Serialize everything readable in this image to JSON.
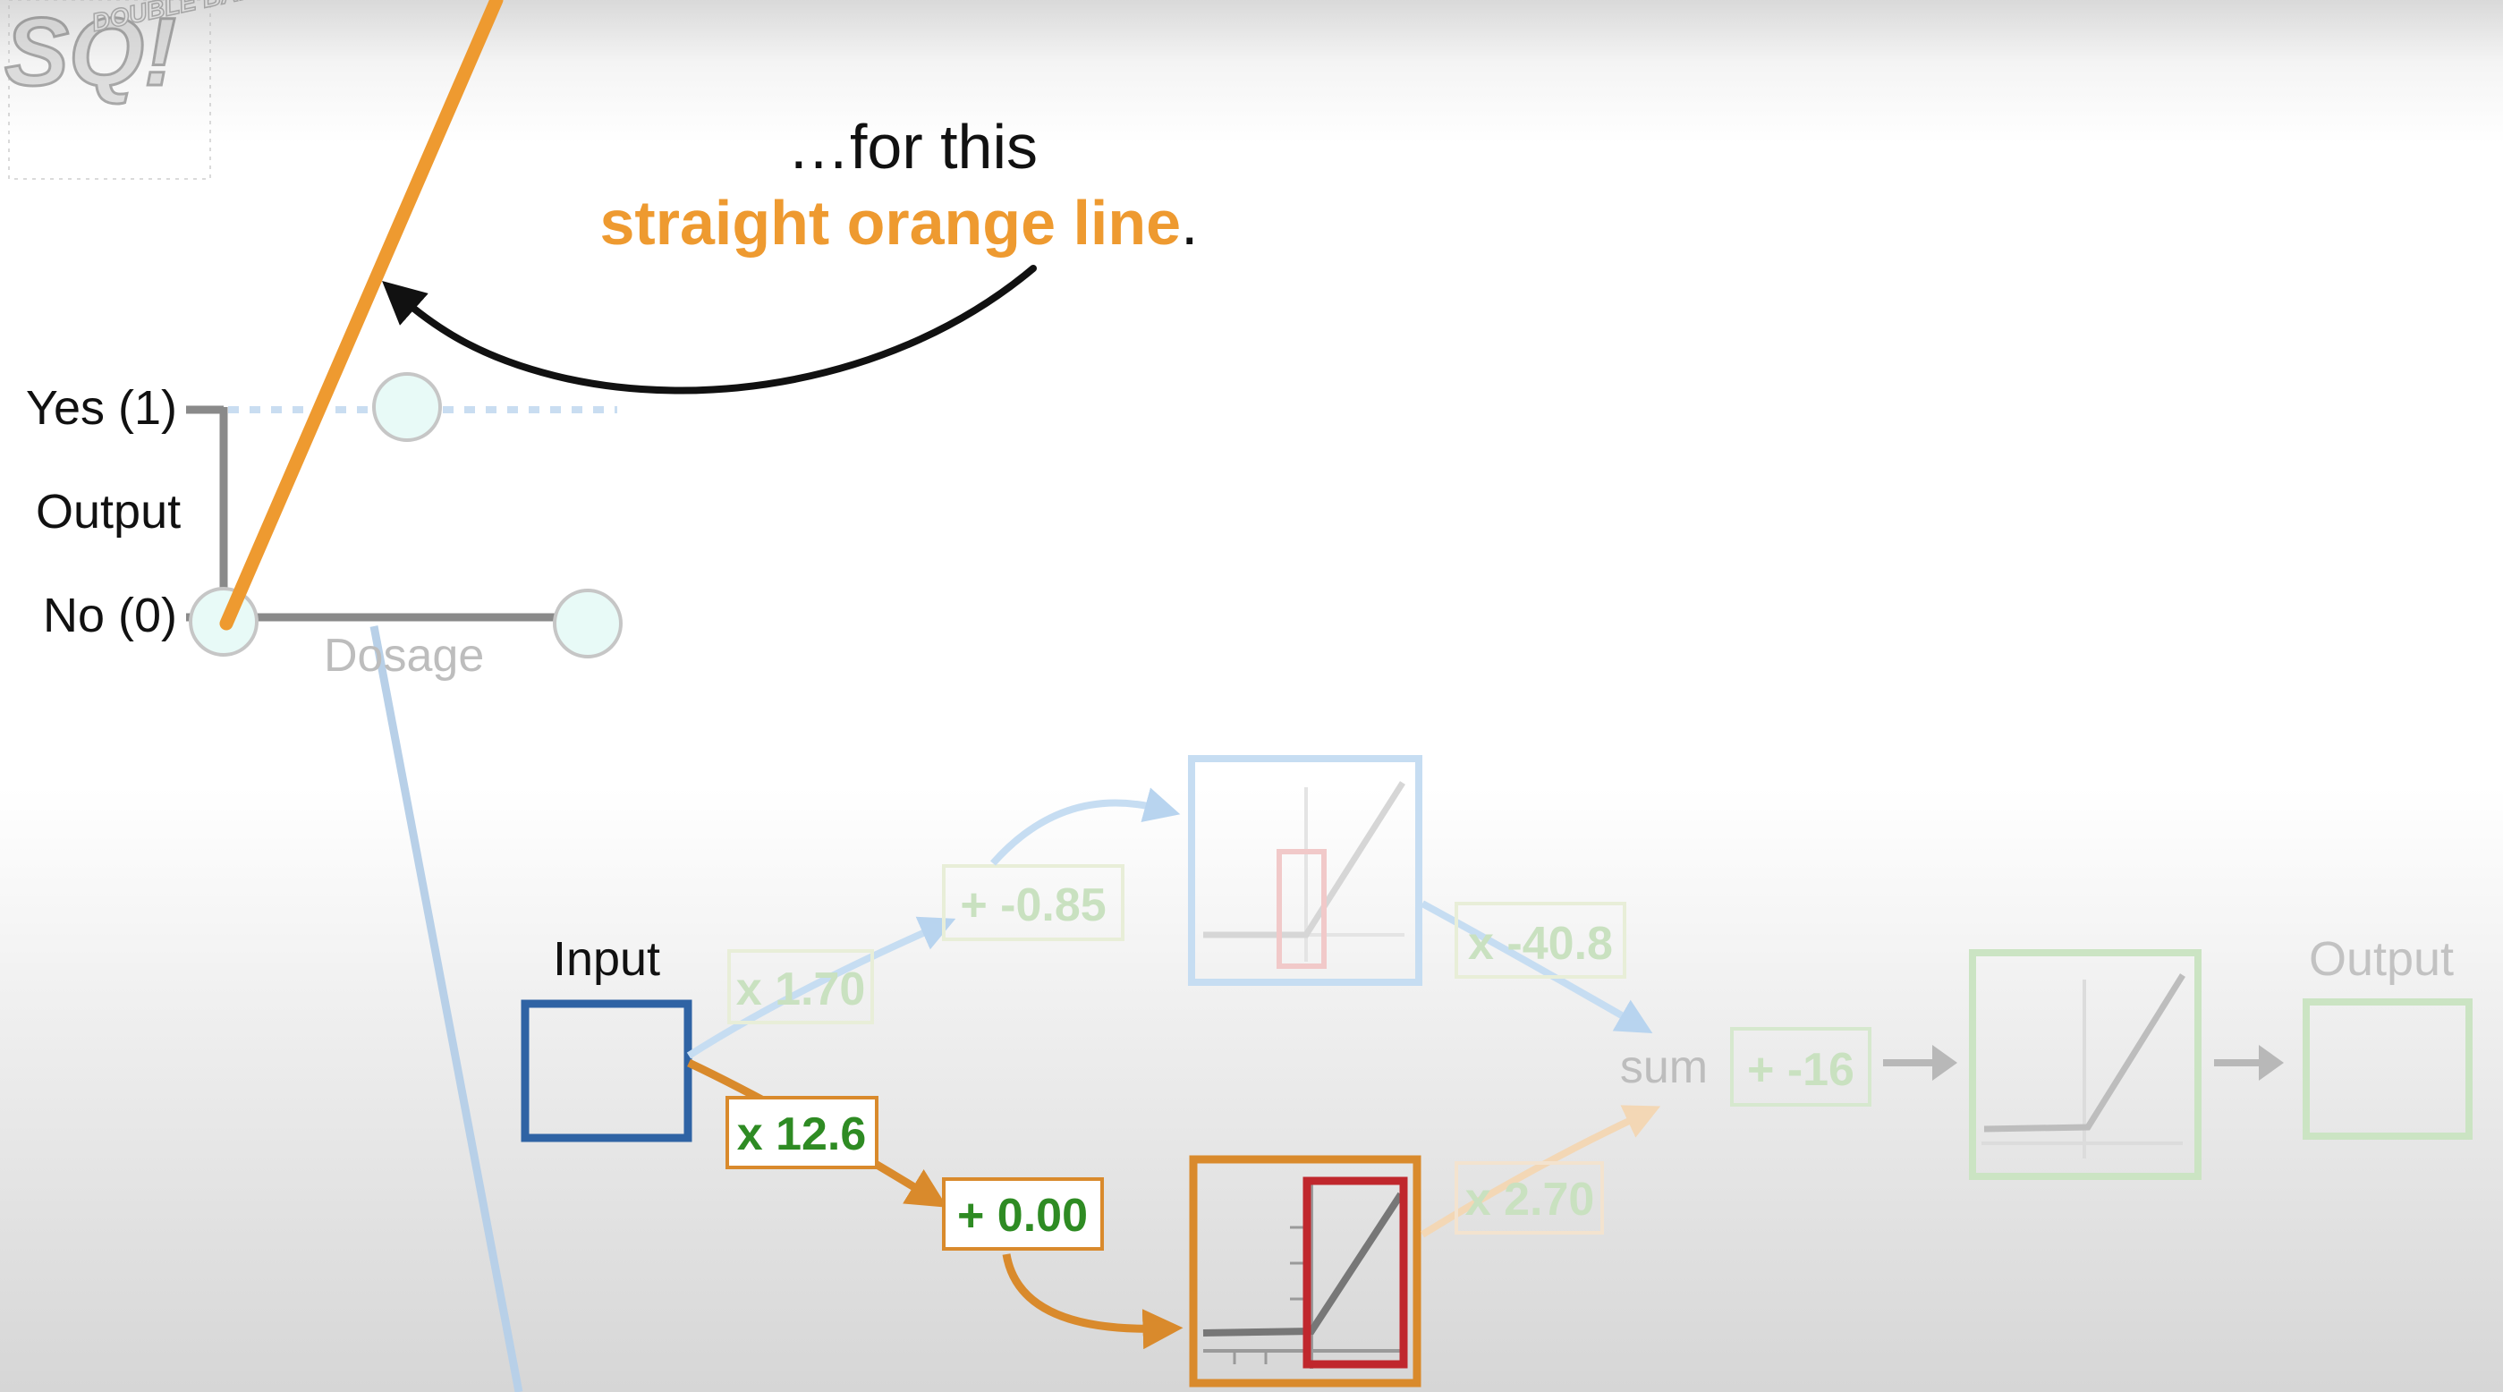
{
  "logo": {
    "big_letters": "SQ!",
    "small_text": "DOUBLE BAM!!!"
  },
  "caption": {
    "line1": "…for this",
    "highlight": "straight orange line",
    "end": "."
  },
  "graph": {
    "y_top_label": "Yes (1)",
    "y_axis_label": "Output",
    "y_bottom_label": "No (0)",
    "x_axis_label": "Dosage"
  },
  "network": {
    "input_label": "Input",
    "output_label": "Output",
    "sum_label": "sum",
    "top_weight": "x 1.70",
    "top_bias": "+ -0.85",
    "top_out_weight": "x -40.8",
    "bottom_weight": "x 12.6",
    "bottom_bias": "+ 0.00",
    "bottom_out_weight": "x 2.70",
    "final_bias": "+ -16"
  },
  "colors": {
    "orange": "#EE9A30",
    "input_blue": "#2F63A4",
    "weight_green": "#2E8B23",
    "activation_red": "#C0272D",
    "faded_blue": "#B8D4EF",
    "faded_green": "#BFDDB5"
  }
}
